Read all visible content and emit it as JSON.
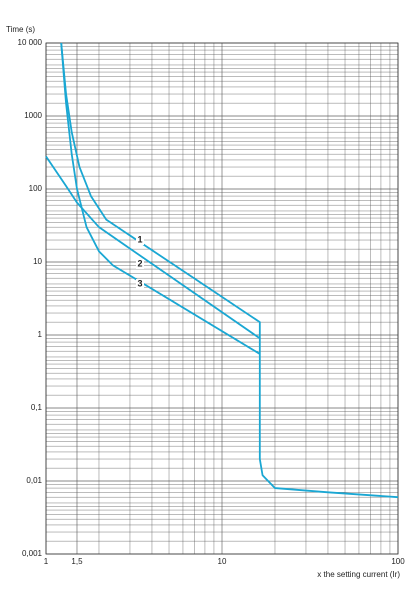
{
  "chart_data": {
    "type": "line",
    "y_label": "Time (s)",
    "x_label": "x the setting current (Ir)",
    "log_x": true,
    "log_y": true,
    "grid": true,
    "minor_grid": true,
    "xlim": [
      1,
      100
    ],
    "ylim": [
      0.001,
      10000
    ],
    "xticks": [
      1,
      {
        "value": 1.5,
        "label": "1,5"
      },
      10,
      100
    ],
    "yticks": [
      {
        "value": 10000,
        "label": "10 000"
      },
      1000,
      100,
      10,
      1,
      {
        "value": 0.1,
        "label": "0,1"
      },
      {
        "value": 0.01,
        "label": "0,01"
      },
      {
        "value": 0.001,
        "label": "0,001"
      }
    ],
    "series": [
      {
        "name": "1",
        "color": "#1aa7d3",
        "x": [
          1.22,
          1.3,
          1.4,
          1.55,
          1.8,
          2.2,
          16.4,
          16.4,
          17,
          20,
          40,
          100
        ],
        "values": [
          10000,
          2000,
          600,
          200,
          80,
          38,
          1.5,
          0.02,
          0.012,
          0.008,
          0.007,
          0.006
        ]
      },
      {
        "name": "2",
        "color": "#1aa7d3",
        "x": [
          1,
          1.3,
          1.5,
          2,
          16.4
        ],
        "values": [
          280,
          110,
          65,
          30,
          0.9
        ]
      },
      {
        "name": "3",
        "color": "#1aa7d3",
        "x": [
          1.22,
          1.3,
          1.4,
          1.5,
          1.7,
          2,
          2.4,
          16.4
        ],
        "values": [
          10000,
          1500,
          300,
          100,
          30,
          14,
          9,
          0.55
        ]
      }
    ]
  }
}
